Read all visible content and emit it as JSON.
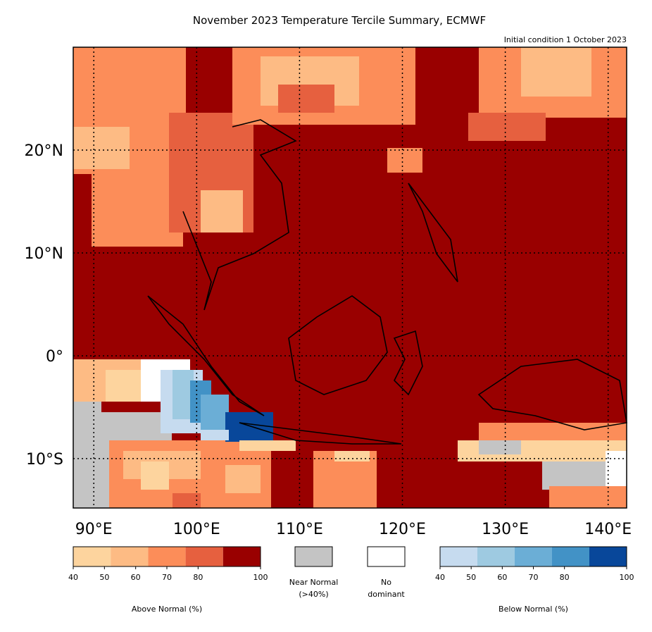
{
  "title": "November 2023 Temperature Tercile Summary, ECMWF",
  "subtitle": "Initial condition 1 October 2023",
  "map": {
    "xlim": [
      88,
      141.8
    ],
    "ylim": [
      -14.8,
      30
    ],
    "xticks": [
      {
        "value": 90,
        "label": "90°E"
      },
      {
        "value": 100,
        "label": "100°E"
      },
      {
        "value": 110,
        "label": "110°E"
      },
      {
        "value": 120,
        "label": "120°E"
      },
      {
        "value": 130,
        "label": "130°E"
      },
      {
        "value": 140,
        "label": "140°E"
      }
    ],
    "yticks": [
      {
        "value": 20,
        "label": "20°N"
      },
      {
        "value": 10,
        "label": "10°N"
      },
      {
        "value": 0,
        "label": "0°"
      },
      {
        "value": -10,
        "label": "10°S"
      }
    ]
  },
  "legend": {
    "above": {
      "label": "Above Normal (%)",
      "ticks": [
        40,
        50,
        60,
        70,
        80,
        100
      ],
      "colors": [
        "#fdd49e",
        "#fdbb84",
        "#fc8d59",
        "#e6603f",
        "#990000"
      ]
    },
    "near": {
      "lines": [
        "Near Normal",
        "(>40%)"
      ],
      "color": "#c4c4c4"
    },
    "none": {
      "lines": [
        "No",
        "dominant"
      ],
      "color": "#ffffff"
    },
    "below": {
      "label": "Below Normal (%)",
      "ticks": [
        40,
        50,
        60,
        70,
        80,
        100
      ],
      "colors": [
        "#c6dbef",
        "#9ecae1",
        "#6baed6",
        "#4292c6",
        "#08479a"
      ]
    }
  }
}
